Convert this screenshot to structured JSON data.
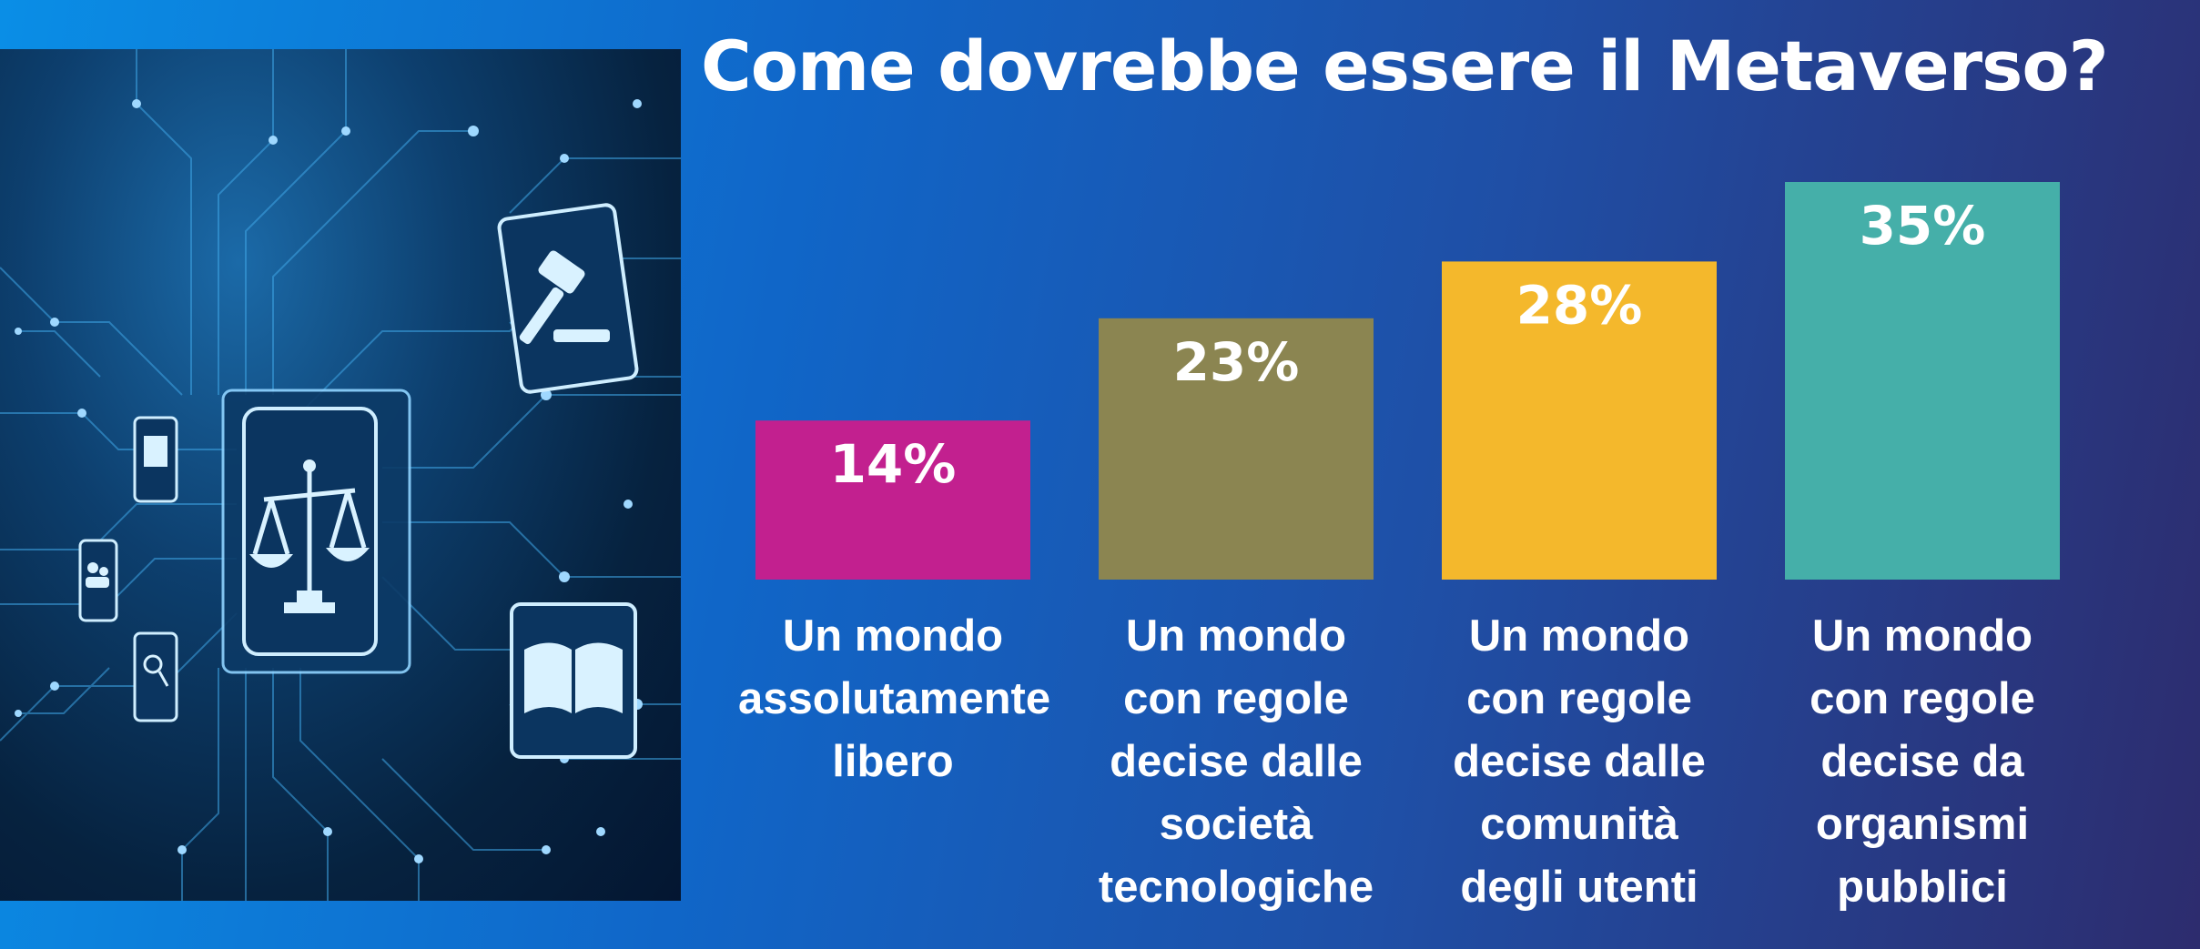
{
  "chart_data": {
    "type": "bar",
    "title": "Come dovrebbe essere il Metaverso?",
    "xlabel": "",
    "ylabel": "",
    "ylim": [
      0,
      35
    ],
    "grid": false,
    "legend": "none",
    "categories": [
      [
        "Un mondo",
        "assolutamente",
        "libero"
      ],
      [
        "Un mondo",
        "con regole",
        "decise dalle",
        "società",
        "tecnologiche"
      ],
      [
        "Un mondo",
        "con regole",
        "decise dalle",
        "comunità",
        "degli utenti"
      ],
      [
        "Un mondo",
        "con regole",
        "decise da",
        "organismi",
        "pubblici"
      ]
    ],
    "values": [
      14,
      23,
      28,
      35
    ],
    "value_labels": [
      "14%",
      "23%",
      "28%",
      "35%"
    ],
    "colors": [
      "#c2208f",
      "#8b8551",
      "#f4b82c",
      "#45afa9"
    ]
  },
  "illustration": {
    "icons": [
      "scales-of-justice-icon",
      "gavel-icon",
      "open-book-icon",
      "document-icon",
      "users-icon",
      "magnifier-icon"
    ]
  }
}
